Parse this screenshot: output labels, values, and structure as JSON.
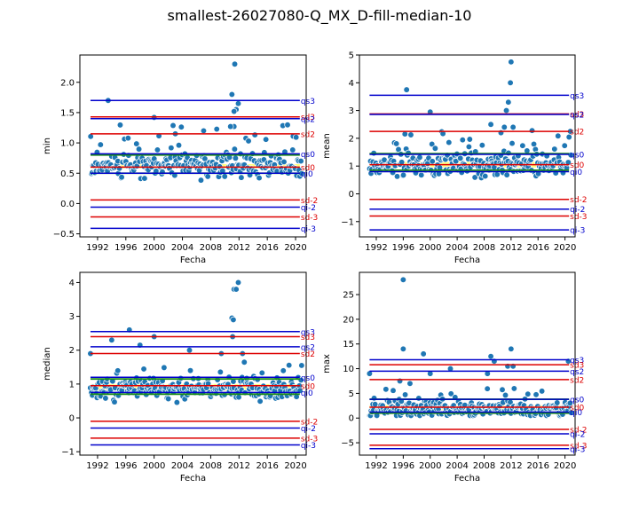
{
  "figure": {
    "title": "smallest-26027080-Q_MX_D-fill-median-10"
  },
  "chart_data": [
    {
      "type": "scatter",
      "ylabel": "min",
      "xlabel": "Fecha",
      "xlim": [
        1989.5,
        2021.5
      ],
      "ylim": [
        -0.55,
        2.45
      ],
      "xticks": [
        1992,
        1996,
        2000,
        2004,
        2008,
        2012,
        2016,
        2020
      ],
      "yticks": [
        -0.5,
        0.0,
        0.5,
        1.0,
        1.5,
        2.0
      ],
      "ytick_labels": [
        "−0.5",
        "0.0",
        "0.5",
        "1.0",
        "1.5",
        "2.0"
      ],
      "seed": 11,
      "dist": {
        "center": 0.62,
        "spread": 0.2,
        "floor": 0.17,
        "cap": 1.3
      },
      "outliers": [
        [
          1993.5,
          1.7
        ],
        [
          2000.0,
          1.42
        ],
        [
          2011.0,
          1.8
        ],
        [
          2011.4,
          2.3
        ],
        [
          2011.6,
          1.55
        ],
        [
          2011.9,
          1.65
        ],
        [
          2010.8,
          1.27
        ],
        [
          2011.3,
          1.52
        ],
        [
          2003.0,
          1.15
        ],
        [
          2007.0,
          1.2
        ]
      ],
      "hlines": [
        {
          "label": "qs3",
          "y": 1.7,
          "color": "#0000cc"
        },
        {
          "label": "sd3",
          "y": 1.43,
          "color": "#dd0000"
        },
        {
          "label": "qs2",
          "y": 1.4,
          "color": "#0000cc"
        },
        {
          "label": "sd2",
          "y": 1.15,
          "color": "#dd0000"
        },
        {
          "label": "qs0",
          "y": 0.82,
          "color": "#0000cc"
        },
        {
          "label": "sd0",
          "y": 0.6,
          "color": "#dd0000"
        },
        {
          "label": "qi0",
          "y": 0.5,
          "color": "#0000cc"
        },
        {
          "label": "sd-2",
          "y": 0.06,
          "color": "#dd0000"
        },
        {
          "label": "qi-2",
          "y": -0.06,
          "color": "#0000cc"
        },
        {
          "label": "sd-3",
          "y": -0.22,
          "color": "#dd0000"
        },
        {
          "label": "qi-3",
          "y": -0.41,
          "color": "#0000cc"
        }
      ],
      "greenlines": [
        0.8,
        0.5
      ],
      "yellowband": [
        0.58,
        0.65
      ]
    },
    {
      "type": "scatter",
      "ylabel": "mean",
      "xlabel": "Fecha",
      "xlim": [
        1989.5,
        2021.5
      ],
      "ylim": [
        -1.55,
        5.0
      ],
      "xticks": [
        1992,
        1996,
        2000,
        2004,
        2008,
        2012,
        2016,
        2020
      ],
      "yticks": [
        -1,
        0,
        1,
        2,
        3,
        4,
        5
      ],
      "ytick_labels": [
        "−1",
        "0",
        "1",
        "2",
        "3",
        "4",
        "5"
      ],
      "seed": 23,
      "dist": {
        "center": 1.05,
        "spread": 0.42,
        "floor": 0.3,
        "cap": 2.3
      },
      "outliers": [
        [
          1996.5,
          3.75
        ],
        [
          2000.0,
          2.95
        ],
        [
          2011.3,
          3.0
        ],
        [
          2011.6,
          3.3
        ],
        [
          2011.9,
          4.0
        ],
        [
          2012.0,
          4.75
        ],
        [
          2011.0,
          2.4
        ],
        [
          2009.0,
          2.5
        ],
        [
          2010.5,
          2.2
        ],
        [
          2012.3,
          2.4
        ]
      ],
      "hlines": [
        {
          "label": "qs3",
          "y": 3.55,
          "color": "#0000cc"
        },
        {
          "label": "sd3",
          "y": 2.88,
          "color": "#dd0000"
        },
        {
          "label": "qs2",
          "y": 2.86,
          "color": "#0000cc"
        },
        {
          "label": "sd2",
          "y": 2.25,
          "color": "#dd0000"
        },
        {
          "label": "qs0",
          "y": 1.42,
          "color": "#0000cc"
        },
        {
          "label": "sd0",
          "y": 1.05,
          "color": "#dd0000"
        },
        {
          "label": "qi0",
          "y": 0.8,
          "color": "#0000cc"
        },
        {
          "label": "sd-2",
          "y": -0.2,
          "color": "#dd0000"
        },
        {
          "label": "qi-2",
          "y": -0.55,
          "color": "#0000cc"
        },
        {
          "label": "sd-3",
          "y": -0.8,
          "color": "#dd0000"
        },
        {
          "label": "qi-3",
          "y": -1.3,
          "color": "#0000cc"
        }
      ],
      "greenlines": [
        1.45,
        0.85
      ],
      "yellowband": [
        0.95,
        1.15
      ]
    },
    {
      "type": "scatter",
      "ylabel": "median",
      "xlabel": "Fecha",
      "xlim": [
        1989.5,
        2021.5
      ],
      "ylim": [
        -1.1,
        4.3
      ],
      "xticks": [
        1992,
        1996,
        2000,
        2004,
        2008,
        2012,
        2016,
        2020
      ],
      "yticks": [
        -1,
        0,
        1,
        2,
        3,
        4
      ],
      "ytick_labels": [
        "−1",
        "0",
        "1",
        "2",
        "3",
        "4"
      ],
      "seed": 37,
      "dist": {
        "center": 0.85,
        "spread": 0.3,
        "floor": 0.3,
        "cap": 1.7
      },
      "outliers": [
        [
          1996.5,
          2.6
        ],
        [
          1991.0,
          1.9
        ],
        [
          1998.0,
          2.15
        ],
        [
          1994.0,
          2.3
        ],
        [
          2000.0,
          2.4
        ],
        [
          2011.0,
          2.95
        ],
        [
          2011.2,
          2.9
        ],
        [
          2011.3,
          3.8
        ],
        [
          2011.6,
          3.8
        ],
        [
          2011.9,
          4.0
        ],
        [
          2011.1,
          2.4
        ],
        [
          2005.0,
          2.0
        ],
        [
          2009.5,
          1.9
        ],
        [
          2012.5,
          1.9
        ]
      ],
      "hlines": [
        {
          "label": "qs3",
          "y": 2.55,
          "color": "#0000cc"
        },
        {
          "label": "sd3",
          "y": 2.4,
          "color": "#dd0000"
        },
        {
          "label": "qs2",
          "y": 2.1,
          "color": "#0000cc"
        },
        {
          "label": "sd2",
          "y": 1.9,
          "color": "#dd0000"
        },
        {
          "label": "qs0",
          "y": 1.2,
          "color": "#0000cc"
        },
        {
          "label": "sd0",
          "y": 0.95,
          "color": "#dd0000"
        },
        {
          "label": "qi0",
          "y": 0.75,
          "color": "#0000cc"
        },
        {
          "label": "sd-2",
          "y": -0.1,
          "color": "#dd0000"
        },
        {
          "label": "qi-2",
          "y": -0.3,
          "color": "#0000cc"
        },
        {
          "label": "sd-3",
          "y": -0.6,
          "color": "#dd0000"
        },
        {
          "label": "qi-3",
          "y": -0.8,
          "color": "#0000cc"
        }
      ],
      "greenlines": [
        1.15,
        0.7
      ],
      "yellowband": [
        0.8,
        1.0
      ]
    },
    {
      "type": "scatter",
      "ylabel": "max",
      "xlabel": "Fecha",
      "xlim": [
        1989.5,
        2021.5
      ],
      "ylim": [
        -7.5,
        29.5
      ],
      "xticks": [
        1992,
        1996,
        2000,
        2004,
        2008,
        2012,
        2016,
        2020
      ],
      "yticks": [
        -5,
        0,
        5,
        10,
        15,
        20,
        25
      ],
      "ytick_labels": [
        "−5",
        "0",
        "5",
        "10",
        "15",
        "20",
        "25"
      ],
      "seed": 53,
      "dist": {
        "center": 1.8,
        "spread": 1.5,
        "floor": 0.5,
        "cap": 6
      },
      "outliers": [
        [
          1996.0,
          28.0
        ],
        [
          1996.0,
          14.0
        ],
        [
          1999.0,
          13.0
        ],
        [
          1991.0,
          9.0
        ],
        [
          1995.5,
          7.5
        ],
        [
          1997.0,
          7.0
        ],
        [
          2000.0,
          9.0
        ],
        [
          2003.0,
          10.0
        ],
        [
          2008.5,
          9.0
        ],
        [
          2009.0,
          12.5
        ],
        [
          2009.5,
          11.5
        ],
        [
          2011.5,
          10.5
        ],
        [
          2012.0,
          14.0
        ],
        [
          2012.3,
          10.5
        ],
        [
          2020.5,
          11.5
        ]
      ],
      "hlines": [
        {
          "label": "qs3",
          "y": 11.8,
          "color": "#0000cc"
        },
        {
          "label": "sd3",
          "y": 10.8,
          "color": "#dd0000"
        },
        {
          "label": "qs2",
          "y": 9.5,
          "color": "#0000cc"
        },
        {
          "label": "sd2",
          "y": 7.8,
          "color": "#dd0000"
        },
        {
          "label": "qs0",
          "y": 3.8,
          "color": "#0000cc"
        },
        {
          "label": "sd0",
          "y": 2.2,
          "color": "#dd0000"
        },
        {
          "label": "qi0",
          "y": 1.2,
          "color": "#0000cc"
        },
        {
          "label": "sd-2",
          "y": -2.3,
          "color": "#dd0000"
        },
        {
          "label": "qi-2",
          "y": -3.2,
          "color": "#0000cc"
        },
        {
          "label": "sd-3",
          "y": -5.5,
          "color": "#dd0000"
        },
        {
          "label": "qi-3",
          "y": -6.2,
          "color": "#0000cc"
        }
      ],
      "greenlines": [
        3.8,
        1.0
      ],
      "yellowband": [
        1.6,
        2.6
      ]
    }
  ]
}
